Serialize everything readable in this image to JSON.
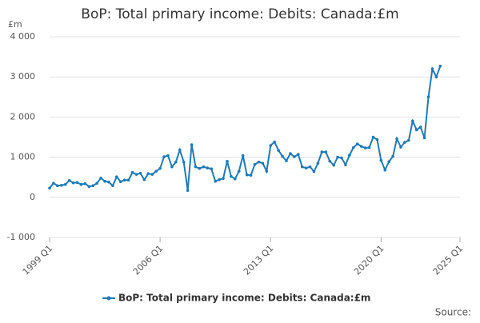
{
  "chart_data": {
    "type": "line",
    "title": "BoP: Total primary income: Debits: Canada:£m",
    "y_unit": "£m",
    "source_label": "Source:",
    "x": [
      1999,
      1999.25,
      1999.5,
      1999.75,
      2000,
      2000.25,
      2000.5,
      2000.75,
      2001,
      2001.25,
      2001.5,
      2001.75,
      2002,
      2002.25,
      2002.5,
      2002.75,
      2003,
      2003.25,
      2003.5,
      2003.75,
      2004,
      2004.25,
      2004.5,
      2004.75,
      2005,
      2005.25,
      2005.5,
      2005.75,
      2006,
      2006.25,
      2006.5,
      2006.75,
      2007,
      2007.25,
      2007.5,
      2007.75,
      2008,
      2008.25,
      2008.5,
      2008.75,
      2009,
      2009.25,
      2009.5,
      2009.75,
      2010,
      2010.25,
      2010.5,
      2010.75,
      2011,
      2011.25,
      2011.5,
      2011.75,
      2012,
      2012.25,
      2012.5,
      2012.75,
      2013,
      2013.25,
      2013.5,
      2013.75,
      2014,
      2014.25,
      2014.5,
      2014.75,
      2015,
      2015.25,
      2015.5,
      2015.75,
      2016,
      2016.25,
      2016.5,
      2016.75,
      2017,
      2017.25,
      2017.5,
      2017.75,
      2018,
      2018.25,
      2018.5,
      2018.75,
      2019,
      2019.25,
      2019.5,
      2019.75,
      2020,
      2020.25,
      2020.5,
      2020.75,
      2021,
      2021.25,
      2021.5,
      2021.75,
      2022,
      2022.25,
      2022.5,
      2022.75,
      2023,
      2023.25,
      2023.5,
      2023.75
    ],
    "series": [
      {
        "name": "BoP: Total primary income: Debits: Canada:£m",
        "color": "#1f7ab8",
        "values": [
          230,
          350,
          290,
          300,
          320,
          420,
          360,
          370,
          320,
          340,
          270,
          290,
          350,
          480,
          400,
          380,
          290,
          510,
          390,
          430,
          430,
          620,
          570,
          600,
          440,
          590,
          570,
          650,
          720,
          1010,
          1040,
          760,
          880,
          1180,
          880,
          170,
          1310,
          760,
          720,
          760,
          730,
          710,
          400,
          440,
          470,
          900,
          520,
          460,
          650,
          1040,
          560,
          550,
          820,
          880,
          850,
          650,
          1290,
          1380,
          1170,
          1020,
          910,
          1090,
          1010,
          1070,
          760,
          730,
          760,
          640,
          850,
          1130,
          1130,
          900,
          800,
          1000,
          980,
          810,
          1050,
          1240,
          1330,
          1270,
          1230,
          1240,
          1500,
          1440,
          920,
          680,
          890,
          1020,
          1460,
          1250,
          1370,
          1420,
          1900,
          1680,
          1750,
          1480,
          2500,
          3200,
          3000,
          3270
        ]
      }
    ],
    "xlim": [
      1999,
      2025
    ],
    "xticks": [
      {
        "value": 1999,
        "label": "1999 Q1"
      },
      {
        "value": 2006,
        "label": "2006 Q1"
      },
      {
        "value": 2013,
        "label": "2013 Q1"
      },
      {
        "value": 2020,
        "label": "2020 Q1"
      },
      {
        "value": 2025,
        "label": "2025 Q1"
      }
    ],
    "ylim": [
      -1000,
      4000
    ],
    "yticks": [
      {
        "value": -1000,
        "label": "-1 000"
      },
      0,
      {
        "value": 1000,
        "label": "1 000"
      },
      {
        "value": 2000,
        "label": "2 000"
      },
      {
        "value": 3000,
        "label": "3 000"
      },
      {
        "value": 4000,
        "label": "4 000"
      }
    ],
    "grid": true
  }
}
